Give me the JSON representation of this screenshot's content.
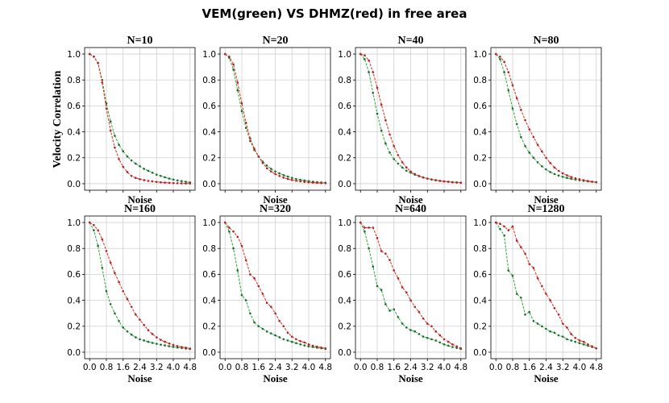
{
  "figure": {
    "title": "VEM(green) VS DHMZ(red) in free area",
    "ylabel": "Velocity Correlation",
    "xlabel": "Noise"
  },
  "colors": {
    "VEM": "#3fae49",
    "DHMZ": "#e0402c",
    "VEM_dark": "#1f6b33",
    "DHMZ_dark": "#b8202a"
  },
  "chart_data": [
    {
      "type": "line",
      "title": "N=10",
      "xlabel": "Noise",
      "ylabel": "Velocity Correlation",
      "x": [
        0,
        0.2,
        0.4,
        0.6,
        0.8,
        1.0,
        1.2,
        1.4,
        1.6,
        1.8,
        2.0,
        2.2,
        2.4,
        2.6,
        2.8,
        3.0,
        3.2,
        3.4,
        3.6,
        3.8,
        4.0,
        4.2,
        4.4,
        4.6,
        4.8
      ],
      "xlim": [
        0,
        4.8
      ],
      "ylim": [
        0,
        1
      ],
      "grid": true,
      "show_yticks": true,
      "series": [
        {
          "name": "VEM",
          "values": [
            1.0,
            0.98,
            0.93,
            0.8,
            0.62,
            0.48,
            0.37,
            0.3,
            0.25,
            0.21,
            0.18,
            0.155,
            0.135,
            0.115,
            0.1,
            0.085,
            0.07,
            0.06,
            0.05,
            0.04,
            0.032,
            0.025,
            0.02,
            0.015,
            0.01
          ]
        },
        {
          "name": "DHMZ",
          "values": [
            1.0,
            0.98,
            0.93,
            0.78,
            0.58,
            0.41,
            0.28,
            0.19,
            0.13,
            0.09,
            0.06,
            0.045,
            0.035,
            0.028,
            0.022,
            0.018,
            0.014,
            0.011,
            0.009,
            0.007,
            0.005,
            0.004,
            0.003,
            0.002,
            0.002
          ]
        }
      ]
    },
    {
      "type": "line",
      "title": "N=20",
      "xlabel": "Noise",
      "x": [
        0,
        0.2,
        0.4,
        0.6,
        0.8,
        1.0,
        1.2,
        1.4,
        1.6,
        1.8,
        2.0,
        2.2,
        2.4,
        2.6,
        2.8,
        3.0,
        3.2,
        3.4,
        3.6,
        3.8,
        4.0,
        4.2,
        4.4,
        4.6,
        4.8
      ],
      "xlim": [
        0,
        4.8
      ],
      "ylim": [
        0,
        1
      ],
      "grid": true,
      "show_yticks": true,
      "series": [
        {
          "name": "VEM",
          "values": [
            1.0,
            0.97,
            0.88,
            0.72,
            0.56,
            0.43,
            0.33,
            0.26,
            0.21,
            0.17,
            0.14,
            0.115,
            0.095,
            0.08,
            0.066,
            0.055,
            0.045,
            0.037,
            0.03,
            0.025,
            0.02,
            0.016,
            0.013,
            0.01,
            0.008
          ]
        },
        {
          "name": "DHMZ",
          "values": [
            1.0,
            0.98,
            0.92,
            0.78,
            0.62,
            0.47,
            0.35,
            0.27,
            0.21,
            0.16,
            0.12,
            0.095,
            0.075,
            0.06,
            0.047,
            0.037,
            0.029,
            0.023,
            0.018,
            0.014,
            0.011,
            0.009,
            0.007,
            0.005,
            0.004
          ]
        }
      ]
    },
    {
      "type": "line",
      "title": "N=40",
      "xlabel": "Noise",
      "x": [
        0,
        0.2,
        0.4,
        0.6,
        0.8,
        1.0,
        1.2,
        1.4,
        1.6,
        1.8,
        2.0,
        2.2,
        2.4,
        2.6,
        2.8,
        3.0,
        3.2,
        3.4,
        3.6,
        3.8,
        4.0,
        4.2,
        4.4,
        4.6,
        4.8
      ],
      "xlim": [
        0,
        4.8
      ],
      "ylim": [
        0,
        1
      ],
      "grid": true,
      "show_yticks": true,
      "series": [
        {
          "name": "VEM",
          "values": [
            1.0,
            0.96,
            0.86,
            0.7,
            0.54,
            0.41,
            0.31,
            0.24,
            0.19,
            0.155,
            0.125,
            0.1,
            0.085,
            0.07,
            0.058,
            0.048,
            0.04,
            0.033,
            0.027,
            0.022,
            0.018,
            0.015,
            0.012,
            0.01,
            0.008
          ]
        },
        {
          "name": "DHMZ",
          "values": [
            1.0,
            0.99,
            0.95,
            0.86,
            0.74,
            0.61,
            0.49,
            0.38,
            0.29,
            0.22,
            0.165,
            0.125,
            0.095,
            0.075,
            0.06,
            0.048,
            0.04,
            0.033,
            0.027,
            0.022,
            0.018,
            0.015,
            0.012,
            0.01,
            0.008
          ]
        }
      ]
    },
    {
      "type": "line",
      "title": "N=80",
      "xlabel": "Noise",
      "x": [
        0,
        0.2,
        0.4,
        0.6,
        0.8,
        1.0,
        1.2,
        1.4,
        1.6,
        1.8,
        2.0,
        2.2,
        2.4,
        2.6,
        2.8,
        3.0,
        3.2,
        3.4,
        3.6,
        3.8,
        4.0,
        4.2,
        4.4,
        4.6,
        4.8
      ],
      "xlim": [
        0,
        4.8
      ],
      "ylim": [
        0,
        1
      ],
      "grid": true,
      "show_yticks": true,
      "series": [
        {
          "name": "VEM",
          "values": [
            1.0,
            0.96,
            0.86,
            0.72,
            0.58,
            0.46,
            0.36,
            0.29,
            0.24,
            0.2,
            0.165,
            0.135,
            0.11,
            0.09,
            0.075,
            0.063,
            0.053,
            0.045,
            0.038,
            0.032,
            0.027,
            0.022,
            0.018,
            0.015,
            0.012
          ]
        },
        {
          "name": "DHMZ",
          "values": [
            1.0,
            0.98,
            0.94,
            0.86,
            0.76,
            0.66,
            0.57,
            0.49,
            0.42,
            0.36,
            0.3,
            0.25,
            0.2,
            0.16,
            0.125,
            0.1,
            0.08,
            0.065,
            0.052,
            0.042,
            0.034,
            0.027,
            0.021,
            0.016,
            0.012
          ]
        }
      ]
    },
    {
      "type": "line",
      "title": "N=160",
      "xlabel": "Noise",
      "x": [
        0,
        0.2,
        0.4,
        0.6,
        0.8,
        1.0,
        1.2,
        1.4,
        1.6,
        1.8,
        2.0,
        2.2,
        2.4,
        2.6,
        2.8,
        3.0,
        3.2,
        3.4,
        3.6,
        3.8,
        4.0,
        4.2,
        4.4,
        4.6,
        4.8
      ],
      "xlim": [
        0,
        4.8
      ],
      "ylim": [
        0,
        1
      ],
      "xticks": [
        0.0,
        0.8,
        1.6,
        2.4,
        3.2,
        4.0,
        4.8
      ],
      "xticklabels": [
        "0.0",
        "0.8",
        "1.6",
        "2.4",
        "3.2",
        "4.0",
        "4.8"
      ],
      "grid": true,
      "show_yticks": true,
      "series": [
        {
          "name": "VEM",
          "values": [
            1.0,
            0.94,
            0.82,
            0.65,
            0.47,
            0.37,
            0.3,
            0.24,
            0.19,
            0.16,
            0.135,
            0.115,
            0.1,
            0.09,
            0.08,
            0.072,
            0.065,
            0.058,
            0.052,
            0.046,
            0.041,
            0.036,
            0.032,
            0.028,
            0.025
          ]
        },
        {
          "name": "DHMZ",
          "values": [
            1.0,
            0.98,
            0.94,
            0.87,
            0.78,
            0.69,
            0.61,
            0.54,
            0.47,
            0.41,
            0.35,
            0.29,
            0.25,
            0.21,
            0.17,
            0.14,
            0.115,
            0.095,
            0.08,
            0.067,
            0.056,
            0.047,
            0.04,
            0.034,
            0.028
          ]
        }
      ]
    },
    {
      "type": "line",
      "title": "N=320",
      "xlabel": "Noise",
      "x": [
        0,
        0.2,
        0.4,
        0.6,
        0.8,
        1.0,
        1.2,
        1.4,
        1.6,
        1.8,
        2.0,
        2.2,
        2.4,
        2.6,
        2.8,
        3.0,
        3.2,
        3.4,
        3.6,
        3.8,
        4.0,
        4.2,
        4.4,
        4.6,
        4.8
      ],
      "xlim": [
        0,
        4.8
      ],
      "ylim": [
        0,
        1
      ],
      "xticks": [
        0.0,
        0.8,
        1.6,
        2.4,
        3.2,
        4.0,
        4.8
      ],
      "xticklabels": [
        "0.0",
        "0.8",
        "1.6",
        "2.4",
        "3.2",
        "4.0",
        "4.8"
      ],
      "grid": true,
      "show_yticks": true,
      "series": [
        {
          "name": "VEM",
          "values": [
            1.0,
            0.93,
            0.8,
            0.63,
            0.44,
            0.4,
            0.3,
            0.23,
            0.2,
            0.18,
            0.16,
            0.145,
            0.13,
            0.115,
            0.1,
            0.09,
            0.08,
            0.07,
            0.06,
            0.052,
            0.045,
            0.04,
            0.035,
            0.03,
            0.025
          ]
        },
        {
          "name": "DHMZ",
          "values": [
            1.0,
            0.96,
            0.93,
            0.89,
            0.82,
            0.71,
            0.6,
            0.57,
            0.51,
            0.45,
            0.38,
            0.35,
            0.3,
            0.24,
            0.2,
            0.15,
            0.12,
            0.1,
            0.085,
            0.075,
            0.06,
            0.05,
            0.043,
            0.035,
            0.03
          ]
        }
      ]
    },
    {
      "type": "line",
      "title": "N=640",
      "xlabel": "Noise",
      "x": [
        0,
        0.2,
        0.4,
        0.6,
        0.8,
        1.0,
        1.2,
        1.4,
        1.6,
        1.8,
        2.0,
        2.2,
        2.4,
        2.6,
        2.8,
        3.0,
        3.2,
        3.4,
        3.6,
        3.8,
        4.0,
        4.2,
        4.4,
        4.6,
        4.8
      ],
      "xlim": [
        0,
        4.8
      ],
      "ylim": [
        0,
        1
      ],
      "xticks": [
        0.0,
        0.8,
        1.6,
        2.4,
        3.2,
        4.0,
        4.8
      ],
      "xticklabels": [
        "0.0",
        "0.8",
        "1.6",
        "2.4",
        "3.2",
        "4.0",
        "4.8"
      ],
      "grid": true,
      "show_yticks": true,
      "series": [
        {
          "name": "VEM",
          "values": [
            1.0,
            0.93,
            0.8,
            0.66,
            0.51,
            0.48,
            0.37,
            0.32,
            0.33,
            0.27,
            0.22,
            0.19,
            0.17,
            0.16,
            0.14,
            0.12,
            0.11,
            0.1,
            0.09,
            0.075,
            0.06,
            0.05,
            0.04,
            0.033,
            0.025
          ]
        },
        {
          "name": "DHMZ",
          "values": [
            1.0,
            0.96,
            0.96,
            0.96,
            0.88,
            0.78,
            0.76,
            0.71,
            0.63,
            0.57,
            0.5,
            0.46,
            0.4,
            0.35,
            0.31,
            0.26,
            0.22,
            0.2,
            0.16,
            0.13,
            0.1,
            0.08,
            0.06,
            0.045,
            0.03
          ]
        }
      ]
    },
    {
      "type": "line",
      "title": "N=1280",
      "xlabel": "Noise",
      "x": [
        0,
        0.2,
        0.4,
        0.6,
        0.8,
        1.0,
        1.2,
        1.4,
        1.6,
        1.8,
        2.0,
        2.2,
        2.4,
        2.6,
        2.8,
        3.0,
        3.2,
        3.4,
        3.6,
        3.8,
        4.0,
        4.2,
        4.4,
        4.6,
        4.8
      ],
      "xlim": [
        0,
        4.8
      ],
      "ylim": [
        0,
        1
      ],
      "xticks": [
        0.0,
        0.8,
        1.6,
        2.4,
        3.2,
        4.0,
        4.8
      ],
      "xticklabels": [
        "0.0",
        "0.8",
        "1.6",
        "2.4",
        "3.2",
        "4.0",
        "4.8"
      ],
      "grid": true,
      "show_yticks": true,
      "series": [
        {
          "name": "VEM",
          "values": [
            1.0,
            0.95,
            0.9,
            0.63,
            0.59,
            0.45,
            0.42,
            0.29,
            0.31,
            0.24,
            0.22,
            0.2,
            0.18,
            0.16,
            0.15,
            0.13,
            0.12,
            0.1,
            0.09,
            0.08,
            0.07,
            0.06,
            0.05,
            0.04,
            0.03
          ]
        },
        {
          "name": "DHMZ",
          "values": [
            1.0,
            0.99,
            0.97,
            0.94,
            0.97,
            0.86,
            0.81,
            0.76,
            0.68,
            0.65,
            0.57,
            0.51,
            0.45,
            0.4,
            0.34,
            0.29,
            0.22,
            0.19,
            0.14,
            0.11,
            0.09,
            0.08,
            0.06,
            0.045,
            0.03
          ]
        }
      ]
    }
  ]
}
